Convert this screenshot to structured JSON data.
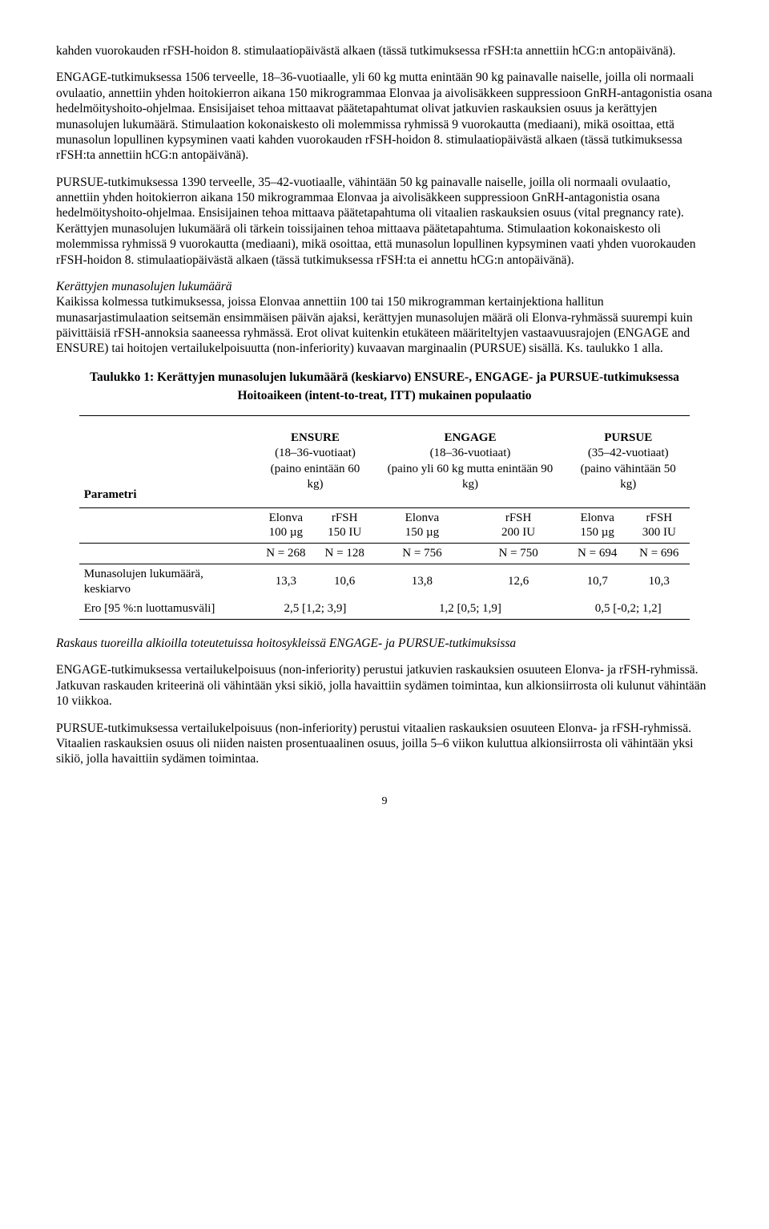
{
  "intro_partial": "kahden vuorokauden rFSH-hoidon 8. stimulaatiopäivästä alkaen (tässä tutkimuksessa rFSH:ta annettiin hCG:n antopäivänä).",
  "p_engage": "ENGAGE-tutkimuksessa 1506 terveelle, 18–36-vuotiaalle, yli 60 kg mutta enintään 90 kg painavalle naiselle, joilla oli normaali ovulaatio, annettiin yhden hoitokierron aikana 150 mikrogrammaa Elonvaa ja aivolisäkkeen suppressioon GnRH-antagonistia osana hedelmöityshoito-ohjelmaa. Ensisijaiset tehoa mittaavat päätetapahtumat olivat jatkuvien raskauksien osuus ja kerättyjen munasolujen lukumäärä. Stimulaation kokonaiskesto oli molemmissa ryhmissä 9 vuorokautta (mediaani), mikä osoittaa, että munasolun lopullinen kypsyminen vaati kahden vuorokauden rFSH-hoidon 8. stimulaatiopäivästä alkaen (tässä tutkimuksessa rFSH:ta annettiin hCG:n antopäivänä).",
  "p_pursue": "PURSUE-tutkimuksessa 1390 terveelle, 35–42-vuotiaalle, vähintään 50 kg painavalle naiselle, joilla oli normaali ovulaatio, annettiin yhden hoitokierron aikana 150 mikrogrammaa Elonvaa ja aivolisäkkeen suppressioon GnRH-antagonistia osana hedelmöityshoito-ohjelmaa. Ensisijainen tehoa mittaava päätetapahtuma oli vitaalien raskauksien osuus (vital pregnancy rate). Kerättyjen munasolujen lukumäärä oli tärkein toissijainen tehoa mittaava päätetapahtuma. Stimulaation kokonaiskesto oli molemmissa ryhmissä 9 vuorokautta (mediaani), mikä osoittaa, että munasolun lopullinen kypsyminen vaati yhden vuorokauden rFSH-hoidon 8. stimulaatiopäivästä alkaen (tässä tutkimuksessa rFSH:ta ei annettu hCG:n antopäivänä).",
  "oocytes_heading": "Kerättyjen munasolujen lukumäärä",
  "p_oocytes": "Kaikissa kolmessa tutkimuksessa, joissa Elonvaa annettiin 100 tai 150 mikrogramman kertainjektiona hallitun munasarjastimulaation seitsemän ensimmäisen päivän ajaksi, kerättyjen munasolujen määrä oli Elonva-ryhmässä suurempi kuin päivittäisiä rFSH-annoksia saaneessa ryhmässä. Erot olivat kuitenkin etukäteen määriteltyjen vastaavuusrajojen (ENGAGE and ENSURE) tai hoitojen vertailukelpoisuutta (non-inferiority) kuvaavan marginaalin (PURSUE) sisällä. Ks. taulukko 1 alla.",
  "table": {
    "title": "Taulukko 1: Kerättyjen munasolujen lukumäärä (keskiarvo) ENSURE-, ENGAGE- ja PURSUE-tutkimuksessa",
    "subtitle": "Hoitoaikeen (intent-to-treat, ITT) mukainen populaatio",
    "param_label": "Parametri",
    "studies": {
      "ensure": {
        "name": "ENSURE",
        "age": "(18–36-vuotiaat)",
        "weight": "(paino enintään 60 kg)"
      },
      "engage": {
        "name": "ENGAGE",
        "age": "(18–36-vuotiaat)",
        "weight": "(paino yli 60 kg mutta enintään 90 kg)"
      },
      "pursue": {
        "name": "PURSUE",
        "age": "(35–42-vuotiaat)",
        "weight": "(paino vähintään 50 kg)"
      }
    },
    "arms": {
      "elonva100": "Elonva\n100 µg",
      "rfsh150": "rFSH\n150 IU",
      "elonva150a": "Elonva\n150 µg",
      "rfsh200": "rFSH\n200 IU",
      "elonva150b": "Elonva\n150 µg",
      "rfsh300": "rFSH\n300 IU"
    },
    "n": [
      "N = 268",
      "N = 128",
      "N = 756",
      "N = 750",
      "N = 694",
      "N = 696"
    ],
    "rows": {
      "mean": {
        "label": "Munasolujen lukumäärä, keskiarvo",
        "vals": [
          "13,3",
          "10,6",
          "13,8",
          "12,6",
          "10,7",
          "10,3"
        ]
      },
      "diff": {
        "label": "Ero [95 %:n luottamusväli]",
        "vals": [
          "2,5 [1,2; 3,9]",
          "1,2 [0,5; 1,9]",
          "0,5 [-0,2; 1,2]"
        ]
      }
    }
  },
  "preg_heading": "Raskaus tuoreilla alkioilla toteutetuissa hoitosykleissä ENGAGE- ja PURSUE-tutkimuksissa",
  "p_preg_engage": "ENGAGE-tutkimuksessa vertailukelpoisuus (non-inferiority) perustui jatkuvien raskauksien osuuteen Elonva- ja rFSH-ryhmissä. Jatkuvan raskauden kriteerinä oli vähintään yksi sikiö, jolla havaittiin sydämen toimintaa, kun alkionsiirrosta oli kulunut vähintään 10 viikkoa.",
  "p_preg_pursue": "PURSUE-tutkimuksessa vertailukelpoisuus (non-inferiority) perustui vitaalien raskauksien osuuteen Elonva- ja rFSH-ryhmissä. Vitaalien raskauksien osuus oli niiden naisten prosentuaalinen osuus, joilla 5–6 viikon kuluttua alkionsiirrosta oli vähintään yksi sikiö, jolla havaittiin sydämen toimintaa.",
  "page_number": "9"
}
